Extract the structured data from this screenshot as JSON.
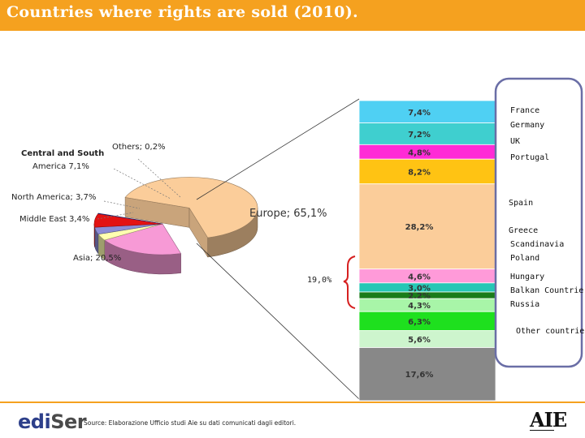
{
  "title": "Countries where rights are sold (2010).",
  "colors": {
    "accent": "#f5a11f",
    "frame": "#6a6ea6",
    "bracket": "#d62020"
  },
  "chart_data": [
    {
      "type": "pie",
      "style": "3d-exploded",
      "slices": [
        {
          "name": "Europe",
          "value": 65.1,
          "label": "Europe; 65,1%",
          "color": "#fbcd9a",
          "exploded": true
        },
        {
          "name": "Asia",
          "value": 20.5,
          "label": "Asia; 20,5%",
          "color": "#f79ad6"
        },
        {
          "name": "Middle East",
          "value": 3.4,
          "label": "Middle East 3,4%",
          "color": "#ffffb0"
        },
        {
          "name": "North America",
          "value": 3.7,
          "label": "North America; 3,7%",
          "color": "#8c8cd6"
        },
        {
          "name": "Central and South America",
          "value": 7.1,
          "label_lines": [
            "Central and South",
            "America 7,1%"
          ],
          "color": "#e31212"
        },
        {
          "name": "Others",
          "value": 0.2,
          "label": "Others; 0,2%",
          "color": "#3a3aa8"
        }
      ]
    },
    {
      "type": "bar",
      "orientation": "stacked-vertical",
      "segments": [
        {
          "value": 7.4,
          "label": "7,4%",
          "color": "#4fd0f3"
        },
        {
          "value": 7.2,
          "label": "7,2%",
          "color": "#3fcfcf"
        },
        {
          "value": 4.8,
          "label": "4,8%",
          "color": "#ff2bd6"
        },
        {
          "value": 8.2,
          "label": "8,2%",
          "color": "#ffc313"
        },
        {
          "value": 28.2,
          "label": "28,2%",
          "color": "#fbcd9a"
        },
        {
          "value": 4.6,
          "label": "4,6%",
          "color": "#ff9ad9"
        },
        {
          "value": 3.0,
          "label": "3,0%",
          "color": "#25c7b5"
        },
        {
          "value": 2.2,
          "label": "2,2%",
          "color": "#1a7c1a"
        },
        {
          "value": 4.3,
          "label": "4,3%",
          "color": "#a8f5a8"
        },
        {
          "value": 6.3,
          "label": "6,3%",
          "color": "#1ee01e"
        },
        {
          "value": 5.6,
          "label": "5,6%",
          "color": "#cdf5cd"
        },
        {
          "value": 17.6,
          "label": "17,6%",
          "color": "#888888"
        }
      ],
      "countries": [
        "France",
        "Germany",
        "UK",
        "Portugal",
        "Spain",
        "Greece",
        "Scandinavia",
        "Poland",
        "Hungary",
        "Balkan Countries",
        "Russia",
        "Other countries"
      ],
      "bracket_label": "19,0%"
    }
  ],
  "footer": {
    "logo_main": "edi",
    "logo_accent": "Ser",
    "source": "Source: Elaborazione Ufficio studi Aie su dati comunicati dagli editori.",
    "aie": "AIE"
  }
}
